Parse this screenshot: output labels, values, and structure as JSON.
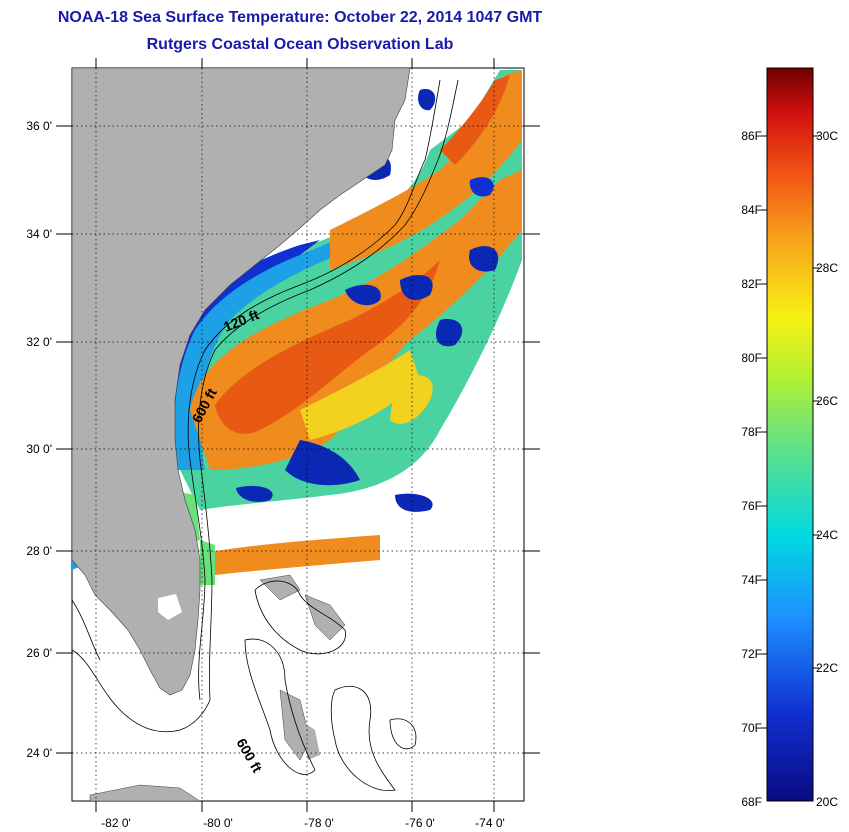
{
  "header": {
    "title": "NOAA-18 Sea Surface Temperature:  October 22, 2014 1047 GMT",
    "subtitle": "Rutgers Coastal Ocean Observation Lab"
  },
  "map": {
    "lat_labels": [
      "36 0'",
      "34 0'",
      "32 0'",
      "30 0'",
      "28 0'",
      "26 0'",
      "24 0'"
    ],
    "lon_labels": [
      "-82 0'",
      "-80 0'",
      "-78 0'",
      "-76 0'",
      "-74 0'"
    ],
    "contour_labels": [
      "120 ft",
      "600 ft",
      "600 ft"
    ],
    "colors": {
      "land": "#b0b0b0",
      "ocean_nodata": "#ffffff",
      "warm": "#f08c1e",
      "hot": "#e85a14",
      "mid": "#f2d21e",
      "cool": "#4ad2a0",
      "cold": "#0a28b4"
    }
  },
  "colorbar": {
    "fahrenheit_labels": [
      "86F",
      "84F",
      "82F",
      "80F",
      "78F",
      "76F",
      "74F",
      "72F",
      "70F",
      "68F"
    ],
    "celsius_labels": [
      "30C",
      "28C",
      "26C",
      "24C",
      "22C",
      "20C"
    ],
    "range_f": [
      68,
      88
    ],
    "range_c": [
      20,
      31.1
    ]
  }
}
